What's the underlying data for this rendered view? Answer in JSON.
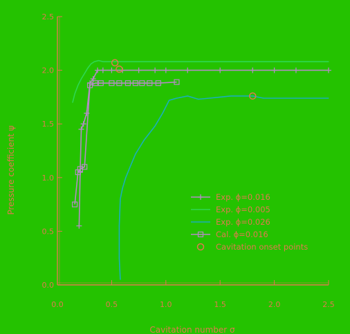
{
  "colors": {
    "background": "#24c200",
    "axis": "#e07a4e",
    "exp_016": "#b48cc4",
    "exp_005": "#2ed852",
    "exp_026": "#1ab0b8",
    "cal_016": "#b48cc4",
    "onset": "#e07a4e"
  },
  "chart_data": {
    "type": "line",
    "xlabel": "Cavitation number σ",
    "ylabel": "Pressure coefficient ψ",
    "xlim": [
      0.0,
      2.5
    ],
    "ylim": [
      0.0,
      2.5
    ],
    "xticks": [
      0.0,
      0.5,
      1.0,
      1.5,
      2.0,
      2.5
    ],
    "yticks": [
      0.0,
      0.5,
      1.0,
      1.5,
      2.0,
      2.5
    ],
    "xtick_labels": [
      "0.0",
      "0.5",
      "1.0",
      "1.5",
      "2.0",
      "2.5"
    ],
    "ytick_labels": [
      "0.0",
      "0.5",
      "1.0",
      "1.5",
      "2.0",
      "2.5"
    ],
    "legend_position": "lower-right",
    "series": [
      {
        "name": "Exp. ϕ=0.016",
        "style": "line-plus",
        "color": "#b48cc4",
        "x": [
          0.2,
          0.21,
          0.22,
          0.24,
          0.27,
          0.3,
          0.33,
          0.37,
          0.42,
          0.5,
          0.6,
          0.75,
          0.9,
          1.0,
          1.2,
          1.5,
          1.8,
          2.0,
          2.2,
          2.5
        ],
        "y": [
          0.55,
          1.05,
          1.45,
          1.5,
          1.6,
          1.88,
          1.92,
          2.0,
          2.0,
          2.0,
          2.0,
          2.0,
          2.0,
          2.0,
          2.0,
          2.0,
          2.0,
          2.0,
          2.0,
          2.0
        ]
      },
      {
        "name": "Exp. ϕ=0.005",
        "style": "line",
        "color": "#2ed852",
        "x": [
          0.14,
          0.16,
          0.19,
          0.22,
          0.25,
          0.28,
          0.31,
          0.34,
          0.38,
          0.42,
          0.48,
          0.55,
          0.7,
          1.0,
          1.5,
          2.0,
          2.5
        ],
        "y": [
          1.7,
          1.78,
          1.86,
          1.92,
          1.97,
          2.02,
          2.06,
          2.08,
          2.09,
          2.08,
          2.08,
          2.08,
          2.08,
          2.08,
          2.08,
          2.08,
          2.08
        ]
      },
      {
        "name": "Exp. ϕ=0.026",
        "style": "line",
        "color": "#1ab0b8",
        "x": [
          0.58,
          0.57,
          0.57,
          0.58,
          0.6,
          0.63,
          0.67,
          0.72,
          0.8,
          0.9,
          0.97,
          1.03,
          1.1,
          1.2,
          1.3,
          1.4,
          1.5,
          1.6,
          1.7,
          1.8,
          1.9,
          2.0,
          2.2,
          2.5
        ],
        "y": [
          0.05,
          0.25,
          0.55,
          0.8,
          0.9,
          1.0,
          1.1,
          1.22,
          1.35,
          1.48,
          1.6,
          1.72,
          1.74,
          1.76,
          1.73,
          1.74,
          1.75,
          1.76,
          1.76,
          1.76,
          1.74,
          1.74,
          1.74,
          1.74
        ]
      },
      {
        "name": "Cal. ϕ=0.016",
        "style": "line-square",
        "color": "#b48cc4",
        "x": [
          0.16,
          0.19,
          0.21,
          0.25,
          0.3,
          0.35,
          0.4,
          0.5,
          0.57,
          0.65,
          0.72,
          0.78,
          0.85,
          0.93,
          1.1
        ],
        "y": [
          0.75,
          1.05,
          1.08,
          1.1,
          1.86,
          1.88,
          1.88,
          1.88,
          1.88,
          1.88,
          1.88,
          1.88,
          1.88,
          1.88,
          1.89
        ]
      },
      {
        "name": "Cavitation onset points",
        "style": "circle",
        "color": "#e07a4e",
        "x": [
          0.53,
          0.57,
          1.8
        ],
        "y": [
          2.07,
          2.01,
          1.76
        ]
      }
    ]
  }
}
